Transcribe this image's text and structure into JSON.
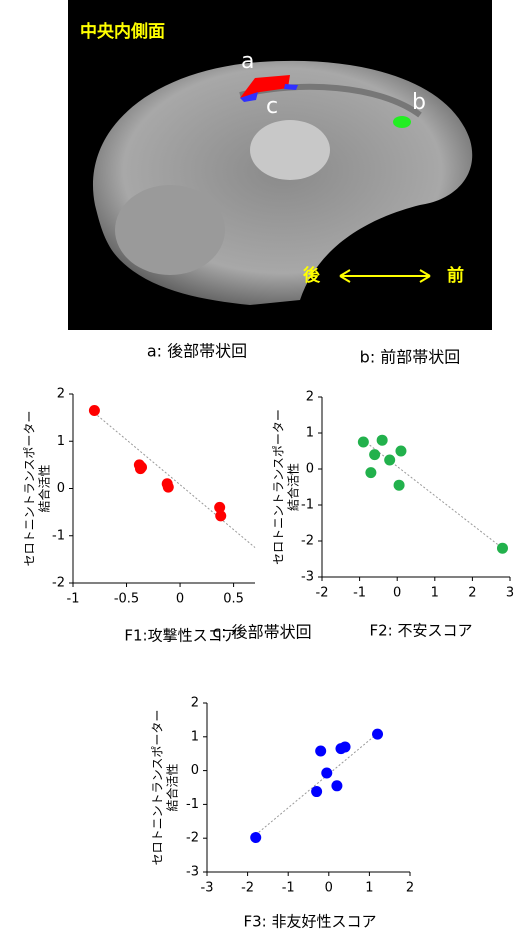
{
  "image": {
    "title": "中央内側面",
    "labels": [
      "a",
      "c",
      "b"
    ],
    "direction": [
      "後",
      "前"
    ]
  },
  "captions": [
    "a: 後部帯状回",
    "b: 前部帯状回",
    "c: 後部帯状回"
  ],
  "chart_data": [
    {
      "type": "scatter",
      "x_label": "F1:攻撃性スコア",
      "y_label": [
        "セロトニントランスポーター",
        "結合活性"
      ],
      "color": "#ff0000",
      "x": [
        -0.8,
        -0.38,
        -0.37,
        -0.36,
        -0.12,
        -0.11,
        0.37,
        0.38
      ],
      "values": [
        1.65,
        0.5,
        0.42,
        0.45,
        0.1,
        0.03,
        -0.4,
        -0.58
      ],
      "trendline": {
        "x": [
          -0.8,
          0.7
        ],
        "y": [
          1.6,
          -1.25
        ]
      },
      "xlim": [
        -1,
        0.7
      ],
      "ylim": [
        -2,
        2
      ],
      "xticks": [
        -1,
        -0.5,
        0,
        0.5
      ],
      "yticks": [
        -2,
        -1,
        0,
        1,
        2
      ]
    },
    {
      "type": "scatter",
      "x_label": "F2: 不安スコア",
      "y_label": [
        "セロトニントランスポーター",
        "結合活性"
      ],
      "color": "#22b14c",
      "x": [
        -0.9,
        -0.7,
        -0.6,
        -0.4,
        -0.2,
        0.05,
        0.1,
        2.8
      ],
      "values": [
        0.75,
        -0.1,
        0.4,
        0.8,
        0.25,
        -0.45,
        0.5,
        -2.2
      ],
      "trendline": {
        "x": [
          -0.9,
          2.8
        ],
        "y": [
          0.8,
          -2.2
        ]
      },
      "xlim": [
        -2,
        3
      ],
      "ylim": [
        -3,
        2
      ],
      "xticks": [
        -2,
        -1,
        0,
        1,
        2,
        3
      ],
      "yticks": [
        -3,
        -2,
        -1,
        0,
        1,
        2
      ]
    },
    {
      "type": "scatter",
      "x_label": "F3: 非友好性スコア",
      "y_label": [
        "セロトニントランスポーター",
        "結合活性"
      ],
      "color": "#0000ff",
      "x": [
        -1.8,
        -0.3,
        -0.2,
        -0.05,
        0.2,
        0.3,
        0.4,
        1.2
      ],
      "values": [
        -1.98,
        -0.62,
        0.58,
        -0.07,
        -0.45,
        0.65,
        0.7,
        1.08
      ],
      "trendline": {
        "x": [
          -1.8,
          1.2
        ],
        "y": [
          -1.9,
          1.1
        ]
      },
      "xlim": [
        -3,
        2
      ],
      "ylim": [
        -3,
        2
      ],
      "xticks": [
        -3,
        -2,
        -1,
        0,
        1,
        2
      ],
      "yticks": [
        -3,
        -2,
        -1,
        0,
        1,
        2
      ]
    }
  ]
}
